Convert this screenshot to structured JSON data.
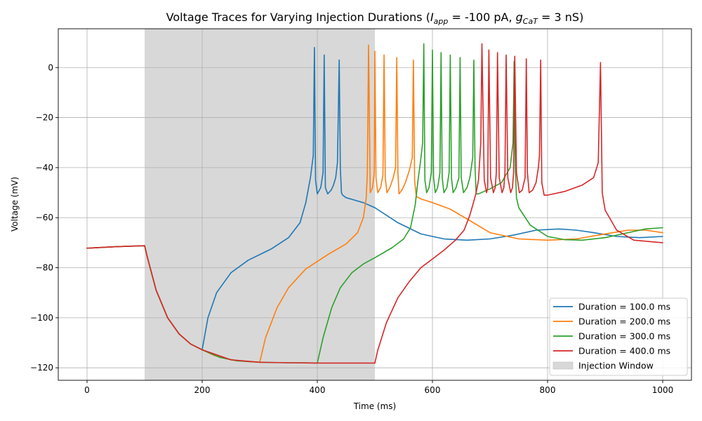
{
  "chart_data": {
    "type": "line",
    "title": {
      "prefix": "Voltage Traces for Varying Injection Durations (",
      "var1": "I",
      "sub1": "app",
      "mid": " = -100 pA, ",
      "var2": "g",
      "sub2": "CaT",
      "suffix": " = 3 nS)"
    },
    "xlabel": "Time (ms)",
    "ylabel": "Voltage (mV)",
    "xlim": [
      -50,
      1050
    ],
    "ylim": [
      -125,
      15.5
    ],
    "xticks": [
      0,
      200,
      400,
      600,
      800,
      1000
    ],
    "xtick_labels": [
      "0",
      "200",
      "400",
      "600",
      "800",
      "1000"
    ],
    "yticks": [
      -120,
      -100,
      -80,
      -60,
      -40,
      -20,
      0
    ],
    "ytick_labels": [
      "−120",
      "−100",
      "−80",
      "−60",
      "−40",
      "−20",
      "0"
    ],
    "grid": true,
    "legend_position": "lower right",
    "injection_window": {
      "start": 100,
      "end": 500,
      "label": "Injection Window",
      "color": "#d8d8d8"
    },
    "series": [
      {
        "name": "Duration = 100.0 ms",
        "color": "#1f77b4",
        "x": [
          0,
          50,
          100,
          105,
          120,
          140,
          160,
          180,
          200,
          210,
          225,
          250,
          280,
          320,
          350,
          370,
          380,
          388,
          393,
          395,
          397,
          400,
          406,
          410,
          412,
          414,
          418,
          424,
          428,
          432,
          435,
          438,
          440,
          442,
          444,
          450,
          480,
          500,
          540,
          580,
          620,
          660,
          700,
          740,
          780,
          820,
          850,
          880,
          920,
          960,
          1000
        ],
        "y": [
          -72.2,
          -71.6,
          -71.2,
          -76,
          -89,
          -100,
          -106.5,
          -110.5,
          -112.8,
          -100,
          -90,
          -82,
          -77,
          -72.5,
          -68,
          -62,
          -54,
          -44,
          -35,
          8,
          -45,
          -50.5,
          -48,
          -42,
          5,
          -48,
          -50.5,
          -49,
          -47,
          -44,
          -38,
          3,
          -40,
          -50,
          -51,
          -52,
          -54,
          -56,
          -62,
          -66.5,
          -68.5,
          -69,
          -68.5,
          -67,
          -65,
          -64.5,
          -65,
          -66,
          -67.5,
          -68,
          -67.5
        ]
      },
      {
        "name": "Duration = 200.0 ms",
        "color": "#ff7f0e",
        "x": [
          0,
          50,
          100,
          105,
          120,
          140,
          160,
          180,
          200,
          220,
          250,
          280,
          300,
          310,
          330,
          350,
          380,
          420,
          450,
          470,
          480,
          485,
          487,
          489,
          492,
          496,
          499,
          500,
          502,
          505,
          510,
          514,
          516,
          518,
          521,
          526,
          532,
          536,
          538,
          540,
          542,
          547,
          553,
          560,
          565,
          567,
          569,
          572,
          580,
          600,
          630,
          660,
          700,
          750,
          800,
          850,
          900,
          940,
          970,
          1000
        ],
        "y": [
          -72.2,
          -71.6,
          -71.2,
          -76,
          -89,
          -100,
          -106.5,
          -110.5,
          -112.8,
          -115,
          -116.8,
          -117.5,
          -117.8,
          -108,
          -96,
          -88,
          -80.5,
          -74.5,
          -70.5,
          -66,
          -60,
          -52,
          -42,
          9,
          -50,
          -48,
          -42,
          6.5,
          -44,
          -50,
          -48,
          -43,
          5,
          -44,
          -50,
          -48,
          -44,
          -40,
          4,
          -42,
          -50.5,
          -49,
          -46,
          -41,
          -36,
          3,
          -45,
          -51.5,
          -52.5,
          -54,
          -56.5,
          -60.5,
          -66,
          -68.5,
          -69,
          -68.5,
          -66.5,
          -65,
          -65,
          -66
        ]
      },
      {
        "name": "Duration = 300.0 ms",
        "color": "#2ca02c",
        "x": [
          0,
          50,
          100,
          105,
          120,
          140,
          160,
          180,
          200,
          230,
          260,
          300,
          350,
          380,
          400,
          410,
          425,
          440,
          460,
          480,
          500,
          530,
          550,
          562,
          570,
          575,
          579,
          583,
          585,
          587,
          590,
          594,
          598,
          600,
          602,
          605,
          609,
          613,
          615,
          617,
          620,
          625,
          629,
          631,
          633,
          636,
          641,
          646,
          648,
          650,
          654,
          660,
          665,
          670,
          672,
          674,
          676,
          680,
          700,
          720,
          735,
          740,
          742,
          744,
          746,
          750,
          770,
          800,
          830,
          860,
          900,
          940,
          970,
          1000
        ],
        "y": [
          -72.2,
          -71.6,
          -71.2,
          -76,
          -89,
          -100,
          -106.5,
          -110.5,
          -112.8,
          -115.8,
          -117.2,
          -117.8,
          -118,
          -118,
          -118.1,
          -108,
          -96,
          -88,
          -82,
          -78.5,
          -76,
          -72,
          -68.5,
          -64,
          -55,
          -45,
          -38,
          -30,
          9.5,
          -45,
          -50,
          -48,
          -42,
          7,
          -44,
          -50,
          -48,
          -42,
          6,
          -44,
          -50,
          -48,
          -42,
          5,
          -44,
          -50,
          -48,
          -44,
          4,
          -44,
          -50,
          -48,
          -44,
          -36,
          3,
          -40,
          -50.5,
          -50.5,
          -48.5,
          -46,
          -40,
          -30,
          2.5,
          -40,
          -52,
          -56,
          -63,
          -67.5,
          -68.8,
          -69,
          -68,
          -66,
          -64.5,
          -64
        ]
      },
      {
        "name": "Duration = 400.0 ms",
        "color": "#d62728",
        "x": [
          0,
          50,
          100,
          105,
          120,
          140,
          160,
          180,
          200,
          250,
          300,
          350,
          400,
          450,
          500,
          505,
          520,
          540,
          560,
          580,
          600,
          620,
          640,
          655,
          665,
          670,
          676,
          680,
          684,
          686,
          690,
          694,
          696,
          698,
          701,
          706,
          709,
          711,
          713,
          716,
          721,
          724,
          726,
          728,
          731,
          736,
          739,
          741,
          743,
          746,
          751,
          756,
          761,
          763,
          765,
          768,
          774,
          780,
          784,
          786,
          788,
          790,
          794,
          800,
          830,
          860,
          880,
          888,
          892,
          895,
          900,
          920,
          950,
          1000
        ],
        "y": [
          -72.2,
          -71.6,
          -71.2,
          -76,
          -89,
          -100,
          -106.5,
          -110.5,
          -112.8,
          -116.8,
          -117.8,
          -118,
          -118.1,
          -118.1,
          -118.1,
          -113,
          -102,
          -92,
          -85.5,
          -80,
          -76.5,
          -73,
          -69,
          -65,
          -59,
          -55,
          -50,
          -45,
          -30,
          9.5,
          -45,
          -50,
          -48,
          7,
          -44,
          -50,
          -48,
          -42,
          6,
          -44,
          -50,
          -48,
          -42,
          5,
          -44,
          -50,
          -48,
          -42,
          4.5,
          -42,
          -50,
          -49,
          -44,
          3.5,
          -42,
          -50,
          -49,
          -46,
          -40,
          -35,
          3,
          -46,
          -51,
          -51,
          -49.5,
          -47,
          -44,
          -38,
          2,
          -50,
          -57,
          -65,
          -69,
          -70
        ]
      }
    ]
  }
}
